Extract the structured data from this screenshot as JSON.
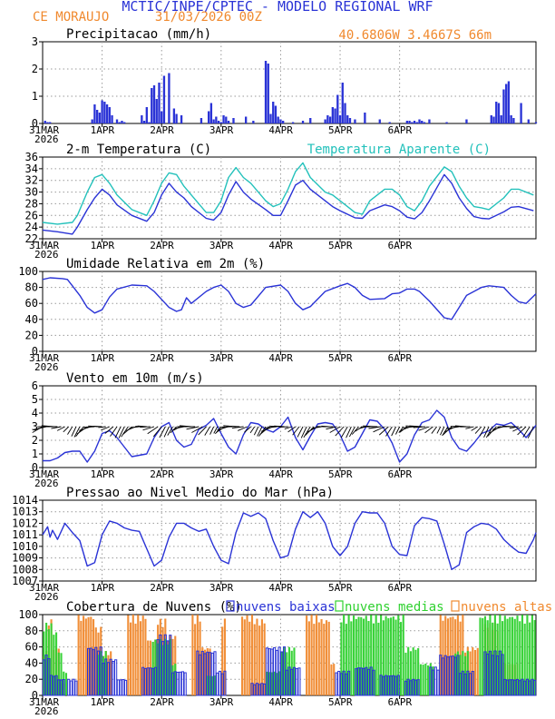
{
  "header": {
    "title": "MCTIC/INPE/CPTEC - MODELO REGIONAL WRF",
    "station": "CE MORAUJO",
    "run": "31/03/2026 00Z",
    "coords": "40.6806W 3.4667S 66m"
  },
  "x_axis": {
    "ticks": [
      "31MAR",
      "1APR",
      "2APR",
      "3APR",
      "4APR",
      "5APR",
      "6APR"
    ],
    "year": "2026"
  },
  "colors": {
    "blue": "#2a33d6",
    "cyan": "#23c1bb",
    "orange": "#f0892e",
    "green": "#2fd12f",
    "grid": "#9a9a9a"
  },
  "chart_data": [
    {
      "id": "precip",
      "type": "bar",
      "title": "Precipitacao (mm/h)",
      "ylim": [
        0,
        3
      ],
      "yticks": [
        0,
        1,
        2,
        3
      ],
      "x_hours": [
        1,
        2,
        3,
        20,
        21,
        22,
        23,
        24,
        25,
        26,
        27,
        28,
        30,
        31,
        32,
        33,
        40,
        41,
        42,
        43,
        44,
        45,
        46,
        47,
        48,
        49,
        51,
        53,
        54,
        56,
        64,
        67,
        68,
        69,
        70,
        71,
        72,
        73,
        74,
        75,
        77,
        82,
        85,
        90,
        91,
        92,
        93,
        94,
        95,
        96,
        97,
        101,
        105,
        108,
        114,
        115,
        116,
        117,
        118,
        119,
        120,
        121,
        122,
        123,
        124,
        126,
        130,
        136,
        140,
        147,
        148,
        149,
        150,
        151,
        152,
        153,
        154,
        156,
        163,
        171,
        181,
        182,
        183,
        184,
        185,
        186,
        187,
        188,
        189,
        190,
        193,
        196,
        199
      ],
      "values": [
        0.1,
        0.05,
        0.05,
        0.15,
        0.7,
        0.5,
        0.4,
        0.85,
        0.8,
        0.7,
        0.6,
        0.3,
        0.15,
        0.05,
        0.1,
        0.05,
        0.3,
        0.1,
        0.6,
        0.05,
        1.3,
        1.4,
        0.9,
        1.5,
        0.45,
        1.75,
        1.85,
        0.55,
        0.35,
        0.3,
        0.2,
        0.45,
        0.75,
        0.15,
        0.25,
        0.1,
        0.05,
        0.3,
        0.25,
        0.1,
        0.2,
        0.25,
        0.1,
        2.3,
        2.2,
        0.35,
        0.8,
        0.65,
        0.25,
        0.15,
        0.1,
        0.05,
        0.1,
        0.2,
        0.15,
        0.3,
        0.25,
        0.6,
        0.55,
        1.05,
        0.3,
        1.5,
        0.75,
        0.3,
        0.2,
        0.15,
        0.4,
        0.15,
        0.05,
        0.1,
        0.1,
        0.05,
        0.1,
        0.05,
        0.15,
        0.1,
        0.05,
        0.15,
        0.05,
        0.15,
        0.3,
        0.25,
        0.8,
        0.75,
        0.3,
        1.25,
        1.45,
        1.55,
        0.3,
        0.2,
        0.75,
        0.15,
        0.05
      ]
    },
    {
      "id": "temp",
      "type": "line",
      "title": "2-m Temperatura (C)",
      "ylim": [
        22,
        36
      ],
      "yticks": [
        22,
        24,
        26,
        28,
        30,
        32,
        34,
        36
      ],
      "x": [
        0,
        6,
        12,
        14,
        18,
        21,
        24,
        27,
        30,
        36,
        42,
        45,
        48,
        51,
        54,
        57,
        60,
        66,
        69,
        72,
        75,
        78,
        81,
        84,
        90,
        93,
        96,
        99,
        102,
        105,
        108,
        114,
        117,
        120,
        123,
        126,
        129,
        132,
        138,
        141,
        144,
        147,
        150,
        153,
        156,
        162,
        165,
        168,
        171,
        174,
        177,
        180,
        186,
        189,
        192,
        198
      ],
      "series": [
        {
          "name": "2-m Temperatura (C)",
          "color": "#2a33d6",
          "values": [
            23.5,
            23.2,
            22.8,
            24,
            27,
            29,
            30.5,
            29.5,
            27.8,
            26,
            25,
            26.5,
            29.5,
            31.5,
            30,
            29,
            27.5,
            25.5,
            25.2,
            26.5,
            29.5,
            31.8,
            30,
            28.8,
            27,
            26,
            26,
            28.5,
            31.2,
            32,
            30.5,
            28.5,
            27.5,
            26.8,
            26.2,
            25.6,
            25.5,
            26.8,
            27.8,
            27.5,
            26.8,
            25.7,
            25.4,
            26.5,
            28.5,
            33,
            31.5,
            29,
            27.2,
            25.8,
            25.5,
            25.4,
            26.6,
            27.4,
            27.5,
            26.8
          ]
        },
        {
          "name": "Temperatura Aparente (C)",
          "color": "#23c1bb",
          "values": [
            24.8,
            24.5,
            24.8,
            26,
            30,
            32.5,
            33,
            31.5,
            29.5,
            27,
            26,
            28.5,
            31.5,
            33.3,
            33,
            31,
            29.5,
            26.5,
            26.5,
            28.5,
            32.5,
            34.2,
            32.5,
            31.5,
            28.5,
            27.5,
            28,
            30.5,
            33.5,
            35,
            32.5,
            30,
            29.5,
            28.5,
            27.5,
            26.5,
            26.2,
            28.5,
            30.5,
            30.5,
            29.5,
            27.5,
            26.8,
            28.5,
            31,
            34.3,
            33.5,
            31,
            29,
            27.5,
            27.3,
            27,
            29,
            30.5,
            30.5,
            29.5
          ]
        }
      ]
    },
    {
      "id": "rh",
      "type": "line",
      "title": "Umidade Relativa em 2m (%)",
      "ylim": [
        0,
        100
      ],
      "yticks": [
        0,
        20,
        40,
        60,
        80,
        100
      ],
      "x": [
        0,
        3,
        8,
        10,
        12,
        15,
        18,
        21,
        24,
        27,
        30,
        36,
        42,
        45,
        48,
        51,
        54,
        56,
        58,
        60,
        66,
        69,
        72,
        75,
        78,
        81,
        84,
        90,
        96,
        99,
        102,
        105,
        108,
        114,
        120,
        123,
        126,
        129,
        132,
        138,
        141,
        144,
        147,
        150,
        152,
        156,
        162,
        165,
        168,
        171,
        174,
        177,
        180,
        186,
        189,
        192,
        195,
        199
      ],
      "series": [
        {
          "name": "Umidade Relativa em 2m (%)",
          "color": "#2a33d6",
          "values": [
            90,
            92,
            91,
            90,
            82,
            70,
            55,
            48,
            52,
            68,
            78,
            83,
            82,
            75,
            65,
            55,
            50,
            52,
            67,
            60,
            75,
            80,
            83,
            75,
            60,
            55,
            58,
            80,
            83,
            75,
            60,
            52,
            56,
            75,
            82,
            85,
            80,
            70,
            65,
            66,
            72,
            73,
            78,
            78,
            75,
            63,
            42,
            40,
            55,
            70,
            75,
            80,
            82,
            80,
            70,
            62,
            60,
            72
          ]
        }
      ]
    },
    {
      "id": "wind",
      "type": "line",
      "title": "Vento em 10m (m/s)",
      "ylim": [
        0,
        6
      ],
      "yticks": [
        0,
        1,
        2,
        3,
        4,
        5,
        6
      ],
      "x": [
        0,
        3,
        6,
        9,
        12,
        15,
        18,
        21,
        24,
        27,
        30,
        36,
        42,
        45,
        48,
        51,
        54,
        57,
        60,
        63,
        66,
        69,
        72,
        75,
        78,
        81,
        84,
        87,
        90,
        93,
        96,
        99,
        102,
        105,
        108,
        111,
        114,
        117,
        120,
        123,
        126,
        129,
        132,
        135,
        138,
        141,
        144,
        147,
        150,
        153,
        156,
        159,
        162,
        165,
        168,
        171,
        174,
        177,
        180,
        183,
        186,
        189,
        192,
        195,
        199
      ],
      "series": [
        {
          "name": "Vento em 10m (m/s)",
          "color": "#2a33d6",
          "values": [
            0.5,
            0.5,
            0.7,
            1.1,
            1.2,
            1.2,
            0.4,
            1.2,
            2.5,
            2.7,
            2.2,
            0.8,
            1.0,
            2.2,
            3.0,
            3.3,
            2.0,
            1.5,
            1.7,
            2.8,
            3.1,
            3.6,
            2.5,
            1.5,
            1.0,
            2.4,
            3.3,
            3.2,
            2.8,
            2.6,
            3.0,
            3.7,
            2.2,
            1.3,
            2.3,
            3.2,
            3.3,
            3.2,
            2.4,
            1.2,
            1.5,
            2.5,
            3.5,
            3.4,
            2.8,
            1.8,
            0.4,
            1.0,
            2.4,
            3.3,
            3.5,
            4.2,
            3.7,
            2.2,
            1.4,
            1.2,
            1.8,
            2.5,
            2.7,
            3.2,
            3.1,
            3.3,
            2.8,
            2.2,
            3.1
          ]
        }
      ],
      "arrows_note": "wind barbs drawn along 3 m/s"
    },
    {
      "id": "press",
      "type": "line",
      "title": "Pressao ao Nivel Medio do Mar (hPa)",
      "ylim": [
        1007,
        1014
      ],
      "yticks": [
        1007,
        1008,
        1009,
        1010,
        1011,
        1012,
        1013,
        1014
      ],
      "x": [
        0,
        2,
        3,
        4,
        6,
        9,
        12,
        15,
        18,
        21,
        24,
        27,
        30,
        33,
        36,
        39,
        42,
        45,
        48,
        51,
        54,
        57,
        60,
        63,
        66,
        69,
        72,
        75,
        78,
        81,
        84,
        87,
        90,
        93,
        96,
        99,
        102,
        105,
        108,
        111,
        114,
        117,
        120,
        123,
        126,
        129,
        132,
        135,
        138,
        141,
        144,
        147,
        150,
        153,
        156,
        159,
        162,
        165,
        168,
        171,
        174,
        177,
        180,
        183,
        186,
        189,
        192,
        195,
        198,
        199
      ],
      "series": [
        {
          "name": "Pressao ao Nivel Medio do Mar (hPa)",
          "color": "#2a33d6",
          "values": [
            1011,
            1011.7,
            1010.8,
            1011.4,
            1010.6,
            1012,
            1011.2,
            1010.5,
            1008.3,
            1008.6,
            1011.0,
            1012.2,
            1012.0,
            1011.6,
            1011.4,
            1011.3,
            1009.8,
            1008.3,
            1008.8,
            1010.8,
            1012.0,
            1012.0,
            1011.6,
            1011.3,
            1011.5,
            1010.0,
            1008.8,
            1008.5,
            1011.2,
            1012.9,
            1012.6,
            1012.9,
            1012.4,
            1010.5,
            1009.0,
            1009.2,
            1011.5,
            1013.0,
            1012.5,
            1013.0,
            1012.0,
            1010.0,
            1009.2,
            1010.0,
            1012.0,
            1013.0,
            1012.9,
            1012.9,
            1012.0,
            1010.0,
            1009.3,
            1009.2,
            1011.8,
            1012.5,
            1012.4,
            1012.2,
            1010.2,
            1008.0,
            1008.4,
            1011.2,
            1011.7,
            1012.0,
            1011.9,
            1011.5,
            1010.6,
            1010.0,
            1009.5,
            1009.4,
            1010.6,
            1011.2
          ]
        }
      ]
    },
    {
      "id": "clouds",
      "type": "bar",
      "title": "Cobertura de Nuvens (%)",
      "ylim": [
        0,
        100
      ],
      "yticks": [
        0,
        20,
        40,
        60,
        80,
        100
      ],
      "legend": [
        "nuvens baixas",
        "nuvens medias",
        "nuvens altas"
      ],
      "segments": [
        {
          "name": "nuvens altas",
          "color": "#f0892e",
          "ranges": [
            [
              0,
              2,
              55
            ],
            [
              2,
              4,
              95
            ],
            [
              4,
              7,
              60
            ],
            [
              7,
              9,
              15
            ],
            [
              14,
              21,
              100
            ],
            [
              21,
              24,
              85
            ],
            [
              24,
              28,
              55
            ],
            [
              34,
              42,
              100
            ],
            [
              42,
              46,
              70
            ],
            [
              46,
              50,
              95
            ],
            [
              50,
              54,
              75
            ],
            [
              60,
              64,
              100
            ],
            [
              64,
              68,
              60
            ],
            [
              72,
              74,
              95
            ],
            [
              80,
              86,
              100
            ],
            [
              86,
              90,
              95
            ],
            [
              92,
              96,
              20
            ],
            [
              106,
              112,
              100
            ],
            [
              112,
              116,
              95
            ],
            [
              116,
              118,
              40
            ],
            [
              160,
              170,
              100
            ],
            [
              170,
              176,
              60
            ],
            [
              178,
              184,
              90
            ],
            [
              186,
              192,
              40
            ]
          ]
        },
        {
          "name": "nuvens medias",
          "color": "#2fd12f",
          "ranges": [
            [
              0,
              4,
              90
            ],
            [
              4,
              6,
              80
            ],
            [
              6,
              8,
              55
            ],
            [
              8,
              10,
              30
            ],
            [
              22,
              26,
              55
            ],
            [
              44,
              52,
              70
            ],
            [
              52,
              54,
              40
            ],
            [
              66,
              70,
              25
            ],
            [
              90,
              96,
              30
            ],
            [
              96,
              102,
              60
            ],
            [
              120,
              146,
              100
            ],
            [
              146,
              152,
              60
            ],
            [
              152,
              158,
              40
            ],
            [
              166,
              172,
              55
            ],
            [
              176,
              199,
              100
            ]
          ]
        },
        {
          "name": "nuvens baixas",
          "color": "#2a33d6",
          "ranges": [
            [
              0,
              3,
              50
            ],
            [
              3,
              6,
              25
            ],
            [
              6,
              9,
              20
            ],
            [
              10,
              14,
              20
            ],
            [
              18,
              24,
              60
            ],
            [
              24,
              30,
              45
            ],
            [
              30,
              34,
              20
            ],
            [
              40,
              46,
              35
            ],
            [
              46,
              52,
              75
            ],
            [
              52,
              58,
              30
            ],
            [
              62,
              70,
              55
            ],
            [
              70,
              74,
              30
            ],
            [
              84,
              90,
              15
            ],
            [
              90,
              98,
              60
            ],
            [
              98,
              104,
              35
            ],
            [
              118,
              124,
              30
            ],
            [
              126,
              134,
              35
            ],
            [
              136,
              144,
              25
            ],
            [
              146,
              152,
              20
            ],
            [
              156,
              160,
              35
            ],
            [
              160,
              168,
              50
            ],
            [
              168,
              174,
              30
            ],
            [
              178,
              186,
              55
            ],
            [
              186,
              199,
              20
            ]
          ]
        }
      ]
    }
  ]
}
